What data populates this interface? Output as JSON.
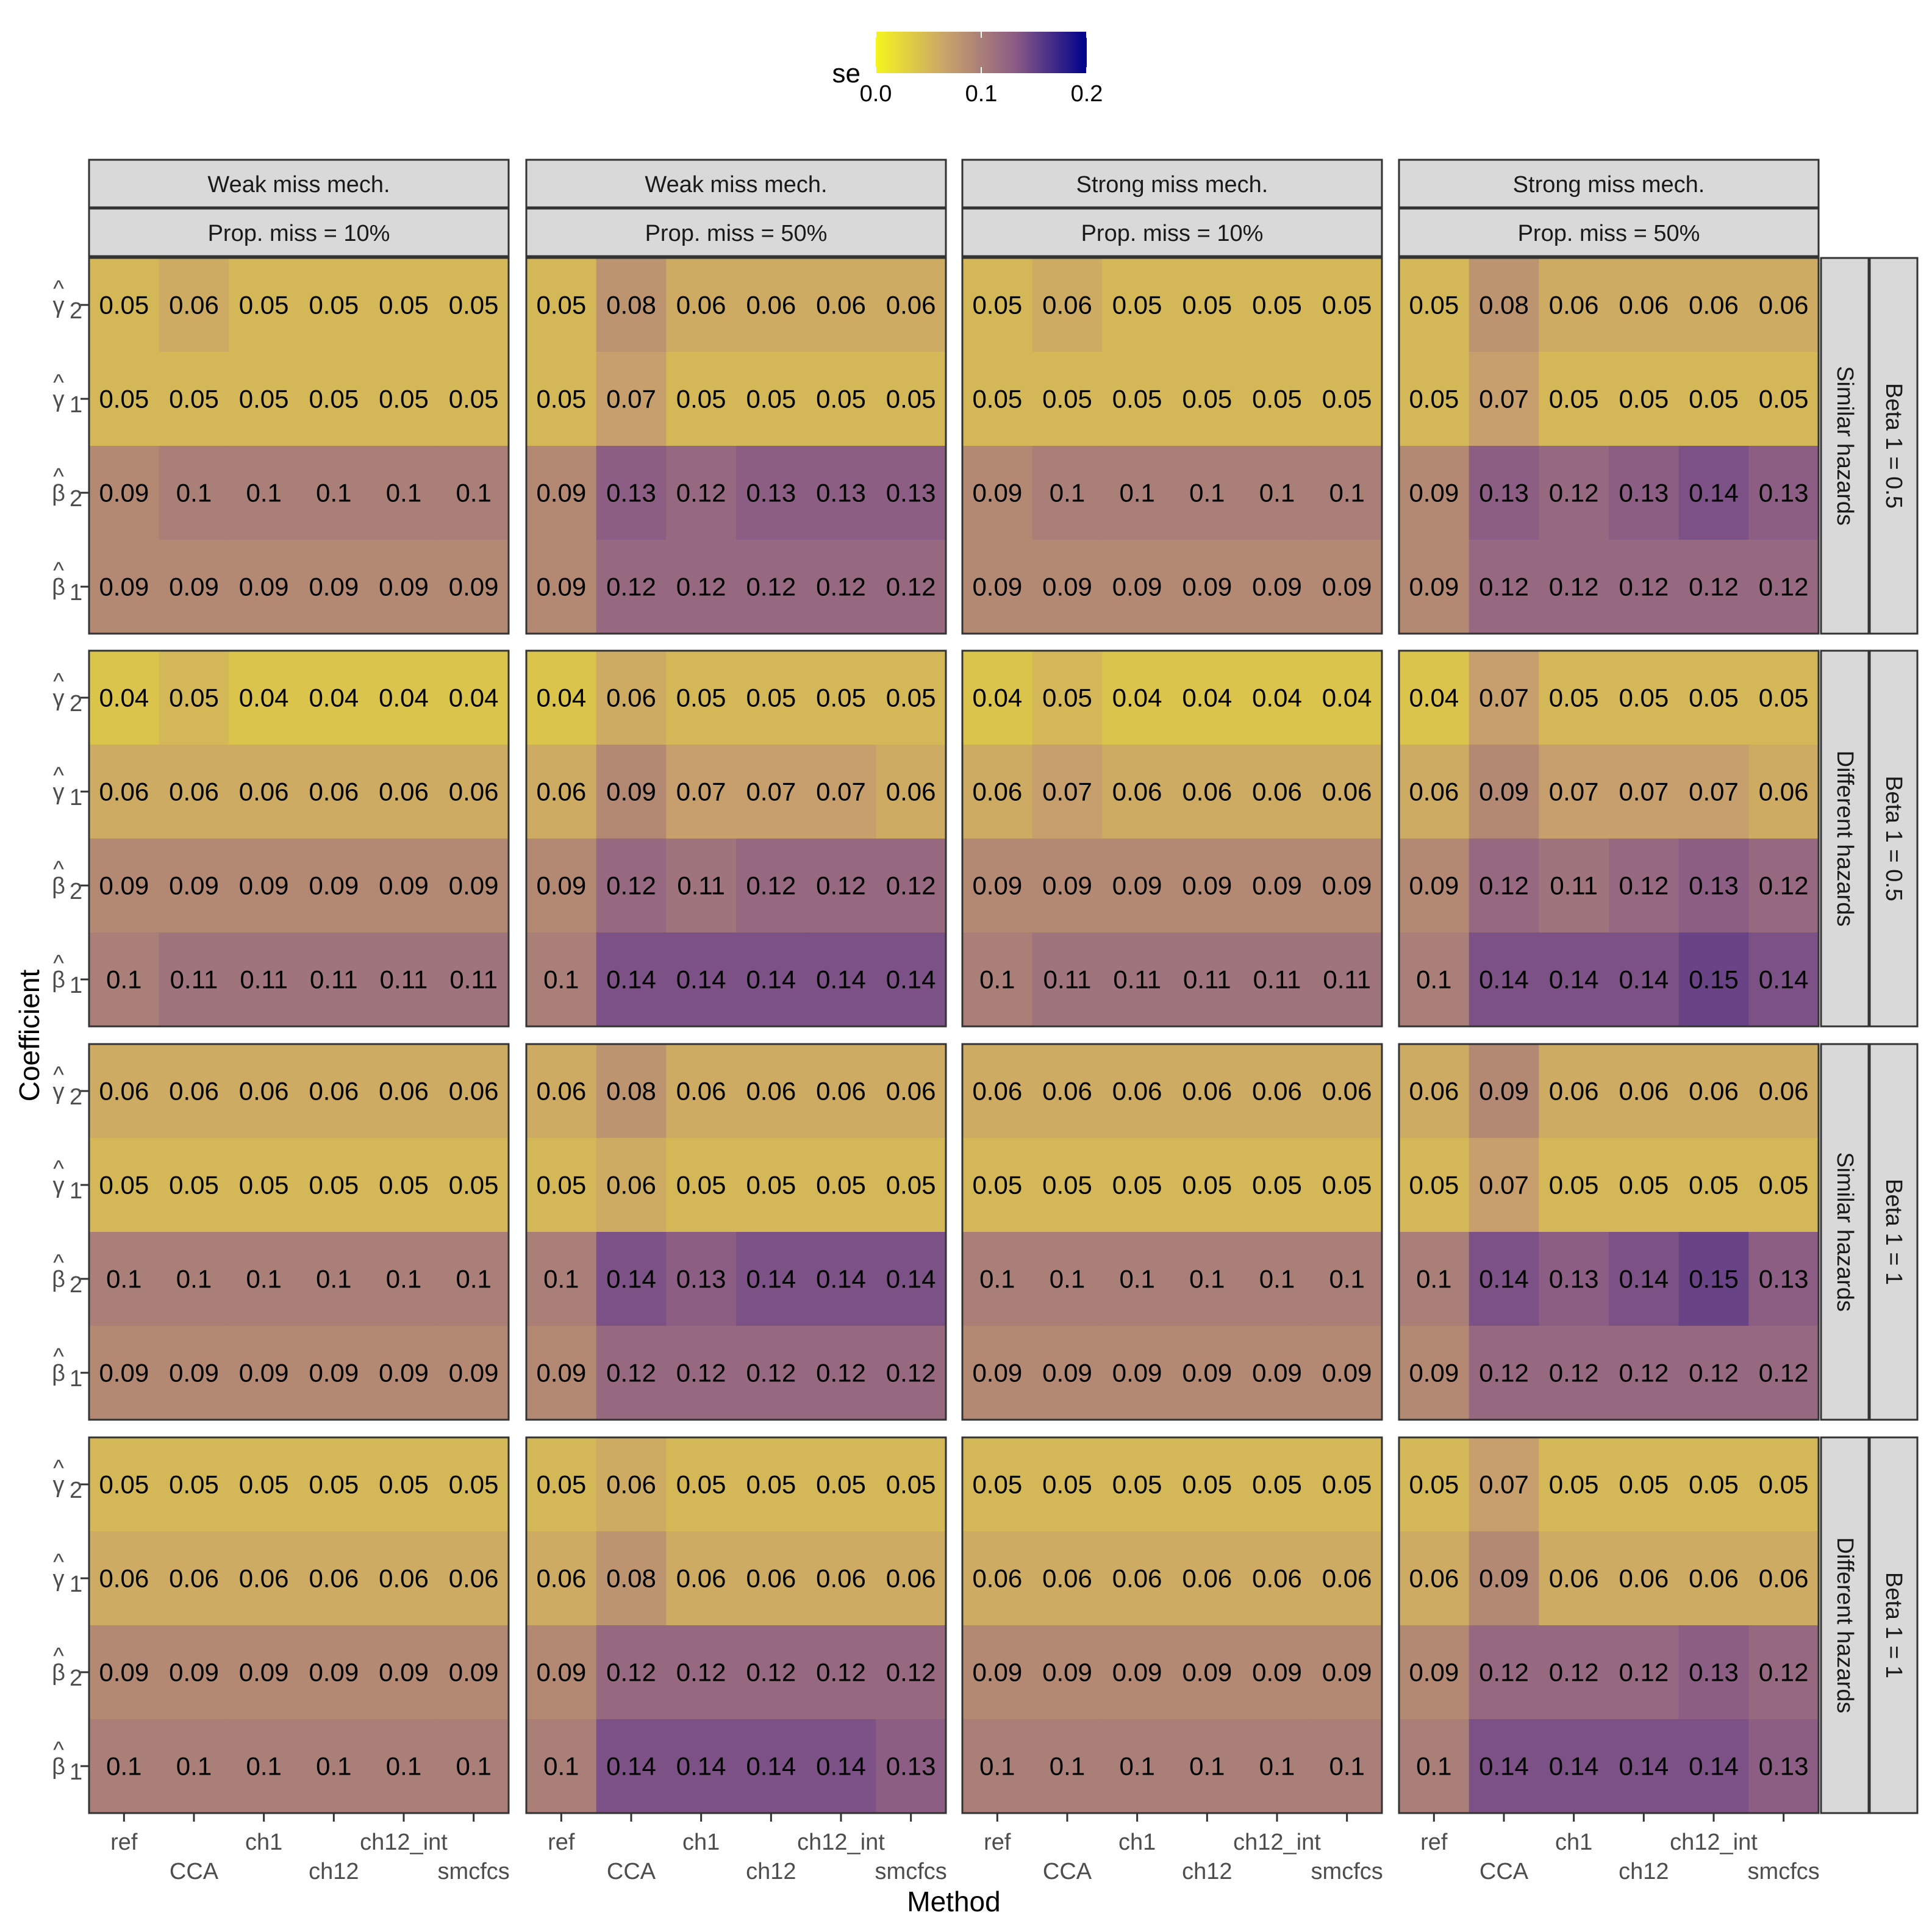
{
  "chart_data": {
    "type": "heatmap",
    "xlabel": "Method",
    "ylabel": "Coefficient",
    "legend": {
      "title": "se",
      "ticks": [
        "0.0",
        "0.1",
        "0.2"
      ],
      "limits": [
        0,
        0.2
      ],
      "position": "top",
      "colors": [
        "#f5f51e",
        "#c9a36b",
        "#8a5a85",
        "#00008b"
      ]
    },
    "methods": [
      "ref",
      "CCA",
      "ch1",
      "ch12",
      "ch12_int",
      "smcfcs"
    ],
    "coefficients": [
      {
        "base": "γ",
        "sub": "2"
      },
      {
        "base": "γ",
        "sub": "1"
      },
      {
        "base": "β",
        "sub": "2"
      },
      {
        "base": "β",
        "sub": "1"
      }
    ],
    "column_facets": [
      {
        "mech": "Weak miss mech.",
        "prop": "Prop. miss = 10%"
      },
      {
        "mech": "Weak miss mech.",
        "prop": "Prop. miss = 50%"
      },
      {
        "mech": "Strong miss mech.",
        "prop": "Prop. miss = 10%"
      },
      {
        "mech": "Strong miss mech.",
        "prop": "Prop. miss = 50%"
      }
    ],
    "row_facets": [
      {
        "hazard": "Similar hazards",
        "beta": "Beta 1 = 0.5"
      },
      {
        "hazard": "Different hazards",
        "beta": "Beta 1 = 0.5"
      },
      {
        "hazard": "Similar hazards",
        "beta": "Beta 1 = 1"
      },
      {
        "hazard": "Different hazards",
        "beta": "Beta 1 = 1"
      }
    ],
    "panels": [
      [
        [
          [
            "0.05",
            "0.06",
            "0.05",
            "0.05",
            "0.05",
            "0.05"
          ],
          [
            "0.05",
            "0.05",
            "0.05",
            "0.05",
            "0.05",
            "0.05"
          ],
          [
            "0.09",
            "0.1",
            "0.1",
            "0.1",
            "0.1",
            "0.1"
          ],
          [
            "0.09",
            "0.09",
            "0.09",
            "0.09",
            "0.09",
            "0.09"
          ]
        ],
        [
          [
            "0.05",
            "0.08",
            "0.06",
            "0.06",
            "0.06",
            "0.06"
          ],
          [
            "0.05",
            "0.07",
            "0.05",
            "0.05",
            "0.05",
            "0.05"
          ],
          [
            "0.09",
            "0.13",
            "0.12",
            "0.13",
            "0.13",
            "0.13"
          ],
          [
            "0.09",
            "0.12",
            "0.12",
            "0.12",
            "0.12",
            "0.12"
          ]
        ],
        [
          [
            "0.05",
            "0.06",
            "0.05",
            "0.05",
            "0.05",
            "0.05"
          ],
          [
            "0.05",
            "0.05",
            "0.05",
            "0.05",
            "0.05",
            "0.05"
          ],
          [
            "0.09",
            "0.1",
            "0.1",
            "0.1",
            "0.1",
            "0.1"
          ],
          [
            "0.09",
            "0.09",
            "0.09",
            "0.09",
            "0.09",
            "0.09"
          ]
        ],
        [
          [
            "0.05",
            "0.08",
            "0.06",
            "0.06",
            "0.06",
            "0.06"
          ],
          [
            "0.05",
            "0.07",
            "0.05",
            "0.05",
            "0.05",
            "0.05"
          ],
          [
            "0.09",
            "0.13",
            "0.12",
            "0.13",
            "0.14",
            "0.13"
          ],
          [
            "0.09",
            "0.12",
            "0.12",
            "0.12",
            "0.12",
            "0.12"
          ]
        ]
      ],
      [
        [
          [
            "0.04",
            "0.05",
            "0.04",
            "0.04",
            "0.04",
            "0.04"
          ],
          [
            "0.06",
            "0.06",
            "0.06",
            "0.06",
            "0.06",
            "0.06"
          ],
          [
            "0.09",
            "0.09",
            "0.09",
            "0.09",
            "0.09",
            "0.09"
          ],
          [
            "0.1",
            "0.11",
            "0.11",
            "0.11",
            "0.11",
            "0.11"
          ]
        ],
        [
          [
            "0.04",
            "0.06",
            "0.05",
            "0.05",
            "0.05",
            "0.05"
          ],
          [
            "0.06",
            "0.09",
            "0.07",
            "0.07",
            "0.07",
            "0.06"
          ],
          [
            "0.09",
            "0.12",
            "0.11",
            "0.12",
            "0.12",
            "0.12"
          ],
          [
            "0.1",
            "0.14",
            "0.14",
            "0.14",
            "0.14",
            "0.14"
          ]
        ],
        [
          [
            "0.04",
            "0.05",
            "0.04",
            "0.04",
            "0.04",
            "0.04"
          ],
          [
            "0.06",
            "0.07",
            "0.06",
            "0.06",
            "0.06",
            "0.06"
          ],
          [
            "0.09",
            "0.09",
            "0.09",
            "0.09",
            "0.09",
            "0.09"
          ],
          [
            "0.1",
            "0.11",
            "0.11",
            "0.11",
            "0.11",
            "0.11"
          ]
        ],
        [
          [
            "0.04",
            "0.07",
            "0.05",
            "0.05",
            "0.05",
            "0.05"
          ],
          [
            "0.06",
            "0.09",
            "0.07",
            "0.07",
            "0.07",
            "0.06"
          ],
          [
            "0.09",
            "0.12",
            "0.11",
            "0.12",
            "0.13",
            "0.12"
          ],
          [
            "0.1",
            "0.14",
            "0.14",
            "0.14",
            "0.15",
            "0.14"
          ]
        ]
      ],
      [
        [
          [
            "0.06",
            "0.06",
            "0.06",
            "0.06",
            "0.06",
            "0.06"
          ],
          [
            "0.05",
            "0.05",
            "0.05",
            "0.05",
            "0.05",
            "0.05"
          ],
          [
            "0.1",
            "0.1",
            "0.1",
            "0.1",
            "0.1",
            "0.1"
          ],
          [
            "0.09",
            "0.09",
            "0.09",
            "0.09",
            "0.09",
            "0.09"
          ]
        ],
        [
          [
            "0.06",
            "0.08",
            "0.06",
            "0.06",
            "0.06",
            "0.06"
          ],
          [
            "0.05",
            "0.06",
            "0.05",
            "0.05",
            "0.05",
            "0.05"
          ],
          [
            "0.1",
            "0.14",
            "0.13",
            "0.14",
            "0.14",
            "0.14"
          ],
          [
            "0.09",
            "0.12",
            "0.12",
            "0.12",
            "0.12",
            "0.12"
          ]
        ],
        [
          [
            "0.06",
            "0.06",
            "0.06",
            "0.06",
            "0.06",
            "0.06"
          ],
          [
            "0.05",
            "0.05",
            "0.05",
            "0.05",
            "0.05",
            "0.05"
          ],
          [
            "0.1",
            "0.1",
            "0.1",
            "0.1",
            "0.1",
            "0.1"
          ],
          [
            "0.09",
            "0.09",
            "0.09",
            "0.09",
            "0.09",
            "0.09"
          ]
        ],
        [
          [
            "0.06",
            "0.09",
            "0.06",
            "0.06",
            "0.06",
            "0.06"
          ],
          [
            "0.05",
            "0.07",
            "0.05",
            "0.05",
            "0.05",
            "0.05"
          ],
          [
            "0.1",
            "0.14",
            "0.13",
            "0.14",
            "0.15",
            "0.13"
          ],
          [
            "0.09",
            "0.12",
            "0.12",
            "0.12",
            "0.12",
            "0.12"
          ]
        ]
      ],
      [
        [
          [
            "0.05",
            "0.05",
            "0.05",
            "0.05",
            "0.05",
            "0.05"
          ],
          [
            "0.06",
            "0.06",
            "0.06",
            "0.06",
            "0.06",
            "0.06"
          ],
          [
            "0.09",
            "0.09",
            "0.09",
            "0.09",
            "0.09",
            "0.09"
          ],
          [
            "0.1",
            "0.1",
            "0.1",
            "0.1",
            "0.1",
            "0.1"
          ]
        ],
        [
          [
            "0.05",
            "0.06",
            "0.05",
            "0.05",
            "0.05",
            "0.05"
          ],
          [
            "0.06",
            "0.08",
            "0.06",
            "0.06",
            "0.06",
            "0.06"
          ],
          [
            "0.09",
            "0.12",
            "0.12",
            "0.12",
            "0.12",
            "0.12"
          ],
          [
            "0.1",
            "0.14",
            "0.14",
            "0.14",
            "0.14",
            "0.13"
          ]
        ],
        [
          [
            "0.05",
            "0.05",
            "0.05",
            "0.05",
            "0.05",
            "0.05"
          ],
          [
            "0.06",
            "0.06",
            "0.06",
            "0.06",
            "0.06",
            "0.06"
          ],
          [
            "0.09",
            "0.09",
            "0.09",
            "0.09",
            "0.09",
            "0.09"
          ],
          [
            "0.1",
            "0.1",
            "0.1",
            "0.1",
            "0.1",
            "0.1"
          ]
        ],
        [
          [
            "0.05",
            "0.07",
            "0.05",
            "0.05",
            "0.05",
            "0.05"
          ],
          [
            "0.06",
            "0.09",
            "0.06",
            "0.06",
            "0.06",
            "0.06"
          ],
          [
            "0.09",
            "0.12",
            "0.12",
            "0.12",
            "0.13",
            "0.12"
          ],
          [
            "0.1",
            "0.14",
            "0.14",
            "0.14",
            "0.14",
            "0.13"
          ]
        ]
      ]
    ]
  }
}
